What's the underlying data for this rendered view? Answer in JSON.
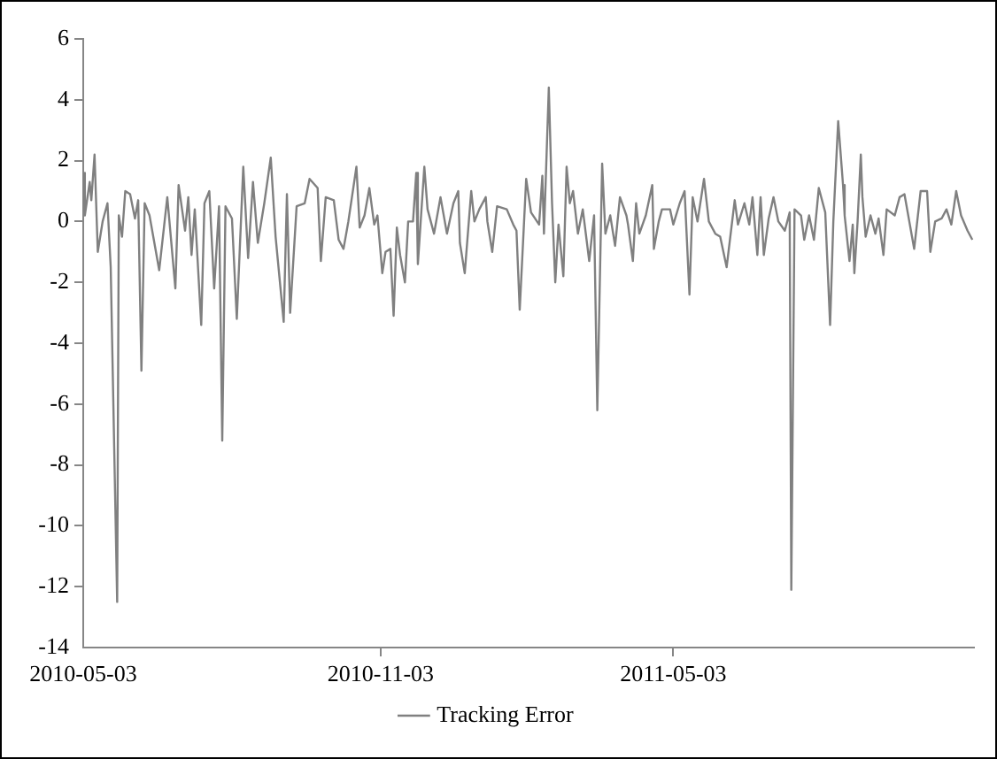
{
  "chart_data": {
    "type": "line",
    "legend": "bottom",
    "marker": "none",
    "line_style": "solid",
    "grid": false,
    "xlim": [
      "2010-05-03",
      "2011-11-05"
    ],
    "xticks": [
      "2010-05-03",
      "2010-11-03",
      "2011-05-03"
    ],
    "ylim": [
      -14,
      6
    ],
    "yticks": [
      -14,
      -12,
      -10,
      -8,
      -6,
      -4,
      -2,
      0,
      2,
      4,
      6
    ],
    "x": [
      "2010-05-03",
      "2010-05-04",
      "2010-05-07",
      "2010-05-08",
      "2010-05-10",
      "2010-05-12",
      "2010-05-15",
      "2010-05-18",
      "2010-05-20",
      "2010-05-24",
      "2010-05-25",
      "2010-05-27",
      "2010-05-29",
      "2010-06-01",
      "2010-06-04",
      "2010-06-06",
      "2010-06-08",
      "2010-06-10",
      "2010-06-13",
      "2010-06-19",
      "2010-06-24",
      "2010-06-29",
      "2010-07-01",
      "2010-07-05",
      "2010-07-07",
      "2010-07-09",
      "2010-07-11",
      "2010-07-15",
      "2010-07-17",
      "2010-07-20",
      "2010-07-23",
      "2010-07-26",
      "2010-07-28",
      "2010-07-30",
      "2010-08-03",
      "2010-08-06",
      "2010-08-10",
      "2010-08-13",
      "2010-08-16",
      "2010-08-19",
      "2010-08-23",
      "2010-08-27",
      "2010-08-30",
      "2010-09-04",
      "2010-09-06",
      "2010-09-08",
      "2010-09-12",
      "2010-09-17",
      "2010-09-20",
      "2010-09-25",
      "2010-09-27",
      "2010-09-30",
      "2010-10-05",
      "2010-10-08",
      "2010-10-11",
      "2010-10-14",
      "2010-10-19",
      "2010-10-21",
      "2010-10-24",
      "2010-10-27",
      "2010-10-30",
      "2010-11-01",
      "2010-11-04",
      "2010-11-06",
      "2010-11-09",
      "2010-11-11",
      "2010-11-13",
      "2010-11-15",
      "2010-11-18",
      "2010-11-20",
      "2010-11-23",
      "2010-11-25",
      "2010-11-26",
      "2010-11-30",
      "2010-12-02",
      "2010-12-06",
      "2010-12-10",
      "2010-12-14",
      "2010-12-18",
      "2010-12-21",
      "2010-12-22",
      "2010-12-25",
      "2010-12-29",
      "2010-12-31",
      "2011-01-03",
      "2011-01-07",
      "2011-01-08",
      "2011-01-11",
      "2011-01-14",
      "2011-01-20",
      "2011-01-24",
      "2011-01-26",
      "2011-01-28",
      "2011-02-01",
      "2011-02-04",
      "2011-02-09",
      "2011-02-11",
      "2011-02-12",
      "2011-02-15",
      "2011-02-17",
      "2011-02-19",
      "2011-02-21",
      "2011-02-24",
      "2011-02-26",
      "2011-02-28",
      "2011-03-02",
      "2011-03-05",
      "2011-03-08",
      "2011-03-12",
      "2011-03-15",
      "2011-03-17",
      "2011-03-20",
      "2011-03-22",
      "2011-03-25",
      "2011-03-28",
      "2011-03-31",
      "2011-04-04",
      "2011-04-05",
      "2011-04-08",
      "2011-04-10",
      "2011-04-12",
      "2011-04-16",
      "2011-04-20",
      "2011-04-21",
      "2011-04-24",
      "2011-04-26",
      "2011-05-01",
      "2011-05-03",
      "2011-05-07",
      "2011-05-10",
      "2011-05-13",
      "2011-05-15",
      "2011-05-18",
      "2011-05-22",
      "2011-05-25",
      "2011-05-29",
      "2011-06-01",
      "2011-06-05",
      "2011-06-10",
      "2011-06-12",
      "2011-06-16",
      "2011-06-19",
      "2011-06-21",
      "2011-06-24",
      "2011-06-26",
      "2011-06-28",
      "2011-07-01",
      "2011-07-04",
      "2011-07-07",
      "2011-07-11",
      "2011-07-14",
      "2011-07-15",
      "2011-07-17",
      "2011-07-21",
      "2011-07-23",
      "2011-07-26",
      "2011-07-29",
      "2011-08-01",
      "2011-08-05",
      "2011-08-08",
      "2011-08-10",
      "2011-08-13",
      "2011-08-16",
      "2011-08-17",
      "2011-08-20",
      "2011-08-22",
      "2011-08-23",
      "2011-08-25",
      "2011-08-27",
      "2011-08-28",
      "2011-08-30",
      "2011-09-02",
      "2011-09-05",
      "2011-09-07",
      "2011-09-10",
      "2011-09-12",
      "2011-09-17",
      "2011-09-20",
      "2011-09-23",
      "2011-09-26",
      "2011-09-29",
      "2011-10-03",
      "2011-10-07",
      "2011-10-09",
      "2011-10-12",
      "2011-10-16",
      "2011-10-19",
      "2011-10-22",
      "2011-10-25",
      "2011-10-28",
      "2011-11-01",
      "2011-11-04"
    ],
    "series": [
      {
        "name": "Tracking Error",
        "color": "#808080",
        "values": [
          1.6,
          0.2,
          1.3,
          0.7,
          2.2,
          -1.0,
          0,
          0.6,
          -1.5,
          -12.5,
          0.2,
          -0.5,
          1.0,
          0.9,
          0.1,
          0.7,
          -4.9,
          0.6,
          0.2,
          -1.6,
          0.8,
          -2.2,
          1.2,
          -0.3,
          0.8,
          -1.1,
          0.4,
          -3.4,
          0.6,
          1.0,
          -2.2,
          0.5,
          -7.2,
          0.5,
          0.1,
          -3.2,
          1.8,
          -1.2,
          1.3,
          -0.7,
          0.6,
          2.1,
          -0.5,
          -3.3,
          0.9,
          -3.0,
          0.5,
          0.6,
          1.4,
          1.1,
          -1.3,
          0.8,
          0.7,
          -0.6,
          -0.9,
          0.0,
          1.8,
          -0.2,
          0.2,
          1.1,
          -0.1,
          0.2,
          -1.7,
          -1.0,
          -0.9,
          -3.1,
          -0.2,
          -1.1,
          -2.0,
          0.0,
          0.0,
          1.6,
          -1.4,
          1.8,
          0.4,
          -0.4,
          0.8,
          -0.4,
          0.6,
          1.0,
          -0.7,
          -1.7,
          1.0,
          0.0,
          0.4,
          0.8,
          0.0,
          -1.0,
          0.5,
          0.4,
          -0.1,
          -0.3,
          -2.9,
          1.4,
          0.3,
          -0.1,
          1.5,
          -0.4,
          4.4,
          0.6,
          -2.0,
          -0.1,
          -1.8,
          1.8,
          0.6,
          1.0,
          -0.4,
          0.4,
          -1.3,
          0.2,
          -6.2,
          1.9,
          -0.4,
          0.2,
          -0.8,
          0.8,
          0.2,
          -0.1,
          -1.3,
          0.6,
          -0.4,
          0.2,
          1.2,
          -0.9,
          0.0,
          0.4,
          0.4,
          -0.1,
          0.6,
          1.0,
          -2.4,
          0.8,
          0.0,
          1.4,
          0.0,
          -0.4,
          -0.5,
          -1.5,
          0.7,
          -0.1,
          0.6,
          -0.1,
          0.8,
          -1.1,
          0.8,
          -1.1,
          0.1,
          0.8,
          0.0,
          -0.3,
          0.3,
          -12.1,
          0.4,
          0.2,
          -0.6,
          0.2,
          -0.6,
          1.1,
          0.3,
          -3.4,
          0.0,
          3.3,
          1.2,
          0.2,
          -1.3,
          -0.1,
          -1.7,
          0.0,
          2.2,
          0.8,
          -0.5,
          0.2,
          -0.4,
          0.1,
          -1.1,
          0.4,
          0.2,
          0.8,
          0.9,
          0.0,
          -0.9,
          1.0,
          1.0,
          -1.0,
          0.0,
          0.1,
          0.4,
          -0.1,
          1.0,
          0.2,
          -0.3,
          -0.6
        ]
      }
    ]
  }
}
